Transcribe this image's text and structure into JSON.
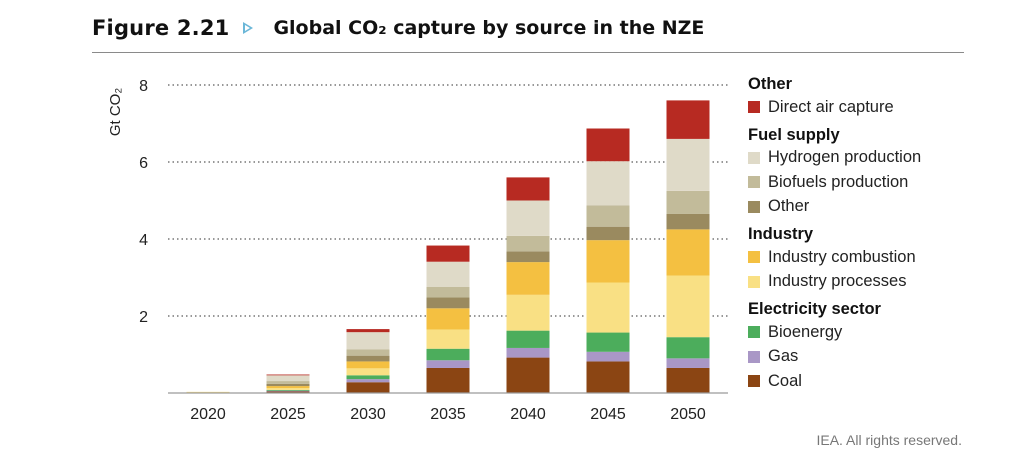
{
  "header": {
    "figure_label": "Figure 2.21",
    "title": "Global CO₂ capture by source in the NZE"
  },
  "credit": "IEA. All rights reserved.",
  "chart_data": {
    "type": "bar",
    "stacked": true,
    "title": "Global CO₂ capture by source in the NZE",
    "ylabel": "Gt CO₂",
    "ylim": [
      0,
      8
    ],
    "yticks": [
      2,
      4,
      6,
      8
    ],
    "grid": "dotted horizontal",
    "legend_position": "right",
    "categories": [
      "2020",
      "2025",
      "2030",
      "2035",
      "2040",
      "2045",
      "2050"
    ],
    "series": [
      {
        "name": "Coal",
        "group": "Electricity sector",
        "color": "#8b4513",
        "values": [
          0.02,
          0.04,
          0.28,
          0.65,
          0.92,
          0.82,
          0.65
        ]
      },
      {
        "name": "Gas",
        "group": "Electricity sector",
        "color": "#a997c6",
        "values": [
          0.0,
          0.02,
          0.08,
          0.2,
          0.25,
          0.25,
          0.25
        ]
      },
      {
        "name": "Bioenergy",
        "group": "Electricity sector",
        "color": "#4cad5c",
        "values": [
          0.0,
          0.02,
          0.1,
          0.3,
          0.45,
          0.5,
          0.55
        ]
      },
      {
        "name": "Industry processes",
        "group": "Industry",
        "color": "#f9e084",
        "values": [
          0.01,
          0.05,
          0.18,
          0.5,
          0.93,
          1.3,
          1.6
        ]
      },
      {
        "name": "Industry combustion",
        "group": "Industry",
        "color": "#f4c041",
        "values": [
          0.0,
          0.05,
          0.18,
          0.55,
          0.85,
          1.1,
          1.2
        ]
      },
      {
        "name": "Other",
        "group": "Fuel supply",
        "color": "#9a8a5f",
        "values": [
          0.0,
          0.06,
          0.15,
          0.28,
          0.28,
          0.35,
          0.4
        ]
      },
      {
        "name": "Biofuels production",
        "group": "Fuel supply",
        "color": "#c2bb9a",
        "values": [
          0.0,
          0.07,
          0.16,
          0.28,
          0.4,
          0.55,
          0.6
        ]
      },
      {
        "name": "Hydrogen production",
        "group": "Fuel supply",
        "color": "#dfdac8",
        "values": [
          0.0,
          0.15,
          0.45,
          0.65,
          0.92,
          1.15,
          1.35
        ]
      },
      {
        "name": "Direct air capture",
        "group": "Other",
        "color": "#b72a22",
        "values": [
          0.0,
          0.02,
          0.08,
          0.42,
          0.6,
          0.85,
          1.0
        ]
      }
    ]
  },
  "legend": [
    {
      "heading": "Other",
      "items": [
        {
          "label": "Direct air capture",
          "color": "#b72a22"
        }
      ]
    },
    {
      "heading": "Fuel supply",
      "items": [
        {
          "label": "Hydrogen production",
          "color": "#dfdac8"
        },
        {
          "label": "Biofuels production",
          "color": "#c2bb9a"
        },
        {
          "label": "Other",
          "color": "#9a8a5f"
        }
      ]
    },
    {
      "heading": "Industry",
      "items": [
        {
          "label": "Industry combustion",
          "color": "#f4c041"
        },
        {
          "label": "Industry processes",
          "color": "#f9e084"
        }
      ]
    },
    {
      "heading": "Electricity sector",
      "items": [
        {
          "label": "Bioenergy",
          "color": "#4cad5c"
        },
        {
          "label": "Gas",
          "color": "#a997c6"
        },
        {
          "label": "Coal",
          "color": "#8b4513"
        }
      ]
    }
  ]
}
